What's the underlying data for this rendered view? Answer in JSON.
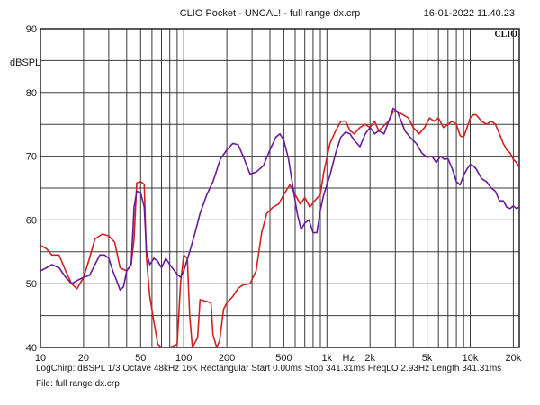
{
  "header": {
    "title": "CLIO Pocket - UNCAL! - full range dx.crp",
    "timestamp": "16-01-2022 11.40.23"
  },
  "footer": {
    "line1": "LogChirp:  dBSPL   1/3 Octave   48kHz   16K   Rectangular   Start 0.00ms   Stop 341.31ms   FreqLO 2.93Hz   Length 341.31ms",
    "line2": "File: full range dx.crp"
  },
  "chart_data": {
    "type": "line",
    "logo": "CLIO",
    "ylabel": "dBSPL",
    "xlabel": "Hz",
    "x_scale": "log",
    "xlim": [
      10,
      22000
    ],
    "ylim": [
      40,
      90
    ],
    "y_ticks": [
      40,
      50,
      60,
      70,
      80,
      90
    ],
    "x_tick_labels": [
      {
        "value": 10,
        "label": "10"
      },
      {
        "value": 20,
        "label": "20"
      },
      {
        "value": 50,
        "label": "50"
      },
      {
        "value": 100,
        "label": "100"
      },
      {
        "value": 200,
        "label": "200"
      },
      {
        "value": 500,
        "label": "500"
      },
      {
        "value": 1000,
        "label": "1k"
      },
      {
        "value": 2000,
        "label": "2k"
      },
      {
        "value": 5000,
        "label": "5k"
      },
      {
        "value": 10000,
        "label": "10k"
      },
      {
        "value": 20000,
        "label": "20k"
      }
    ],
    "grid": true,
    "series": [
      {
        "color": "#d42020",
        "points": [
          [
            10,
            56
          ],
          [
            11,
            55.5
          ],
          [
            12,
            54.5
          ],
          [
            13.5,
            54.5
          ],
          [
            15,
            52
          ],
          [
            16.5,
            50
          ],
          [
            18,
            49.2
          ],
          [
            20,
            51
          ],
          [
            22,
            54
          ],
          [
            24,
            57
          ],
          [
            27,
            57.8
          ],
          [
            30,
            57.5
          ],
          [
            33,
            56.5
          ],
          [
            36,
            52.5
          ],
          [
            40,
            52
          ],
          [
            43,
            53
          ],
          [
            45,
            57
          ],
          [
            47,
            65.8
          ],
          [
            50,
            66
          ],
          [
            53,
            65.6
          ],
          [
            55,
            54
          ],
          [
            58,
            48
          ],
          [
            62,
            44
          ],
          [
            66,
            40.5
          ],
          [
            70,
            40
          ],
          [
            80,
            40
          ],
          [
            90,
            40.5
          ],
          [
            95,
            50
          ],
          [
            100,
            54.5
          ],
          [
            106,
            54
          ],
          [
            110,
            45
          ],
          [
            115,
            40
          ],
          [
            125,
            41.5
          ],
          [
            130,
            47.5
          ],
          [
            145,
            47.2
          ],
          [
            155,
            47
          ],
          [
            160,
            42
          ],
          [
            170,
            40
          ],
          [
            178,
            41
          ],
          [
            190,
            46
          ],
          [
            200,
            47
          ],
          [
            220,
            48
          ],
          [
            240,
            49.3
          ],
          [
            260,
            49.8
          ],
          [
            290,
            50
          ],
          [
            320,
            52
          ],
          [
            350,
            58
          ],
          [
            380,
            61
          ],
          [
            420,
            62
          ],
          [
            460,
            62.5
          ],
          [
            500,
            64
          ],
          [
            550,
            65.5
          ],
          [
            600,
            64
          ],
          [
            650,
            62.5
          ],
          [
            700,
            63.5
          ],
          [
            760,
            62
          ],
          [
            820,
            63
          ],
          [
            900,
            64
          ],
          [
            950,
            67.5
          ],
          [
            1050,
            72
          ],
          [
            1150,
            74
          ],
          [
            1250,
            75.5
          ],
          [
            1350,
            75.5
          ],
          [
            1450,
            74
          ],
          [
            1550,
            73.5
          ],
          [
            1700,
            74.5
          ],
          [
            1850,
            75
          ],
          [
            2000,
            74.5
          ],
          [
            2150,
            75.5
          ],
          [
            2300,
            74
          ],
          [
            2500,
            74.8
          ],
          [
            2700,
            75.5
          ],
          [
            2900,
            77
          ],
          [
            3100,
            77
          ],
          [
            3400,
            76.5
          ],
          [
            3700,
            76
          ],
          [
            4000,
            74.5
          ],
          [
            4400,
            73.5
          ],
          [
            4800,
            74.5
          ],
          [
            5200,
            76
          ],
          [
            5600,
            75.5
          ],
          [
            6000,
            76
          ],
          [
            6500,
            74.5
          ],
          [
            7000,
            75
          ],
          [
            7500,
            75.5
          ],
          [
            8000,
            75
          ],
          [
            8500,
            73.2
          ],
          [
            9000,
            73
          ],
          [
            9500,
            74.5
          ],
          [
            10000,
            76
          ],
          [
            10500,
            76.5
          ],
          [
            11000,
            76.5
          ],
          [
            12000,
            75.5
          ],
          [
            13000,
            75
          ],
          [
            14000,
            75.5
          ],
          [
            15000,
            75
          ],
          [
            16000,
            73.5
          ],
          [
            17000,
            72
          ],
          [
            18000,
            71
          ],
          [
            19000,
            70.5
          ],
          [
            20000,
            69.5
          ],
          [
            21000,
            69
          ],
          [
            22000,
            68.3
          ]
        ]
      },
      {
        "color": "#6a1b9a",
        "points": [
          [
            10,
            52
          ],
          [
            11,
            52.5
          ],
          [
            12,
            53
          ],
          [
            13.5,
            52.5
          ],
          [
            15,
            51
          ],
          [
            16.5,
            50
          ],
          [
            18,
            50.5
          ],
          [
            20,
            51
          ],
          [
            22,
            51.3
          ],
          [
            24,
            53
          ],
          [
            26,
            54.5
          ],
          [
            28,
            54.5
          ],
          [
            30,
            54
          ],
          [
            32,
            52
          ],
          [
            34,
            50.5
          ],
          [
            36,
            49
          ],
          [
            38,
            49.5
          ],
          [
            40,
            52
          ],
          [
            43,
            53
          ],
          [
            45,
            62
          ],
          [
            47,
            64.5
          ],
          [
            50,
            64.3
          ],
          [
            53,
            62
          ],
          [
            55,
            55
          ],
          [
            58,
            53
          ],
          [
            62,
            54
          ],
          [
            66,
            53.5
          ],
          [
            70,
            52.5
          ],
          [
            75,
            54
          ],
          [
            80,
            53
          ],
          [
            90,
            51.5
          ],
          [
            95,
            51
          ],
          [
            100,
            52
          ],
          [
            110,
            55
          ],
          [
            120,
            58
          ],
          [
            130,
            61
          ],
          [
            145,
            64
          ],
          [
            160,
            66
          ],
          [
            180,
            69.5
          ],
          [
            200,
            71
          ],
          [
            220,
            72
          ],
          [
            240,
            71.8
          ],
          [
            260,
            70
          ],
          [
            290,
            67.2
          ],
          [
            320,
            67.5
          ],
          [
            360,
            68.5
          ],
          [
            400,
            71
          ],
          [
            440,
            73
          ],
          [
            470,
            73.5
          ],
          [
            500,
            72.5
          ],
          [
            540,
            69.5
          ],
          [
            580,
            65
          ],
          [
            620,
            61
          ],
          [
            660,
            58.5
          ],
          [
            700,
            59.5
          ],
          [
            750,
            60
          ],
          [
            800,
            58
          ],
          [
            850,
            58
          ],
          [
            900,
            61.5
          ],
          [
            950,
            64
          ],
          [
            1050,
            67
          ],
          [
            1150,
            70.5
          ],
          [
            1250,
            73
          ],
          [
            1350,
            73.8
          ],
          [
            1450,
            73.5
          ],
          [
            1550,
            72.5
          ],
          [
            1700,
            71.5
          ],
          [
            1850,
            73.5
          ],
          [
            2000,
            74.5
          ],
          [
            2150,
            73.5
          ],
          [
            2300,
            74
          ],
          [
            2500,
            73.5
          ],
          [
            2700,
            75.5
          ],
          [
            2900,
            77.5
          ],
          [
            3100,
            77
          ],
          [
            3300,
            75.5
          ],
          [
            3500,
            74
          ],
          [
            3800,
            73
          ],
          [
            4200,
            72
          ],
          [
            4600,
            70.5
          ],
          [
            5000,
            69.8
          ],
          [
            5400,
            70
          ],
          [
            5800,
            69
          ],
          [
            6200,
            70
          ],
          [
            6600,
            69.5
          ],
          [
            7000,
            69.6
          ],
          [
            7500,
            68
          ],
          [
            8000,
            66
          ],
          [
            8500,
            65.5
          ],
          [
            9000,
            67
          ],
          [
            9500,
            68
          ],
          [
            10000,
            68.7
          ],
          [
            10500,
            68.5
          ],
          [
            11000,
            68
          ],
          [
            12000,
            66.5
          ],
          [
            13000,
            66
          ],
          [
            14000,
            65
          ],
          [
            15000,
            64.5
          ],
          [
            16000,
            63
          ],
          [
            17000,
            63
          ],
          [
            18000,
            62
          ],
          [
            19000,
            61.8
          ],
          [
            20000,
            62.2
          ],
          [
            21000,
            61.8
          ],
          [
            22000,
            62
          ]
        ]
      }
    ]
  }
}
